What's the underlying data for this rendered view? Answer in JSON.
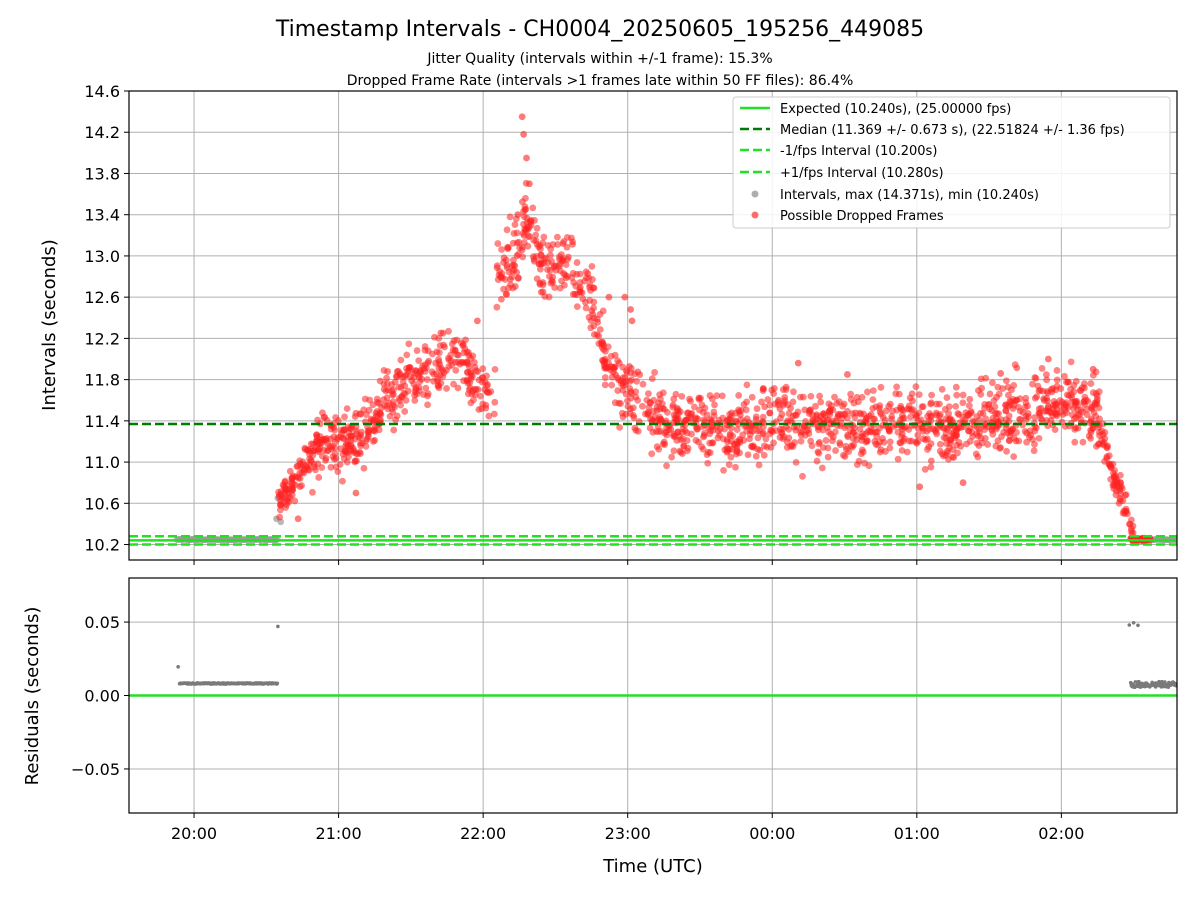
{
  "chart_data": {
    "type": "scatter",
    "title": "Timestamp Intervals - CH0004_20250605_195256_449085",
    "subtitles": [
      "Jitter Quality (intervals within +/-1 frame): 15.3%",
      "Dropped Frame Rate (intervals >1 frames late within 50 FF files): 86.4%"
    ],
    "xlabel": "Time (UTC)",
    "x_ticks": [
      "20:00",
      "21:00",
      "22:00",
      "23:00",
      "00:00",
      "01:00",
      "02:00"
    ],
    "x_tick_hours": [
      20,
      21,
      22,
      23,
      24,
      25,
      26
    ],
    "xlim_hours": [
      19.55,
      26.8
    ],
    "grid": true,
    "top_panel": {
      "ylabel": "Intervals (seconds)",
      "ylim": [
        10.05,
        14.6
      ],
      "y_ticks": [
        "10.2",
        "10.6",
        "11.0",
        "11.4",
        "11.8",
        "12.2",
        "12.6",
        "13.0",
        "13.4",
        "13.8",
        "14.2",
        "14.6"
      ],
      "y_tick_values": [
        10.2,
        10.6,
        11.0,
        11.4,
        11.8,
        12.2,
        12.6,
        13.0,
        13.4,
        13.8,
        14.2,
        14.6
      ],
      "legend_position": "top-right",
      "legend": [
        {
          "label": "Expected (10.240s), (25.00000 fps)",
          "style": "solid",
          "color": "#22e022"
        },
        {
          "label": "Median (11.369 +/- 0.673 s), (22.51824 +/- 1.36 fps)",
          "style": "dashed",
          "color": "#007a00"
        },
        {
          "label": "-1/fps Interval (10.200s)",
          "style": "dashed",
          "color": "#22e022"
        },
        {
          "label": "+1/fps Interval (10.280s)",
          "style": "dashed",
          "color": "#22e022"
        },
        {
          "label": "Intervals, max (14.371s), min (10.240s)",
          "style": "marker",
          "color": "#9a9a9a"
        },
        {
          "label": "Possible Dropped Frames",
          "style": "marker",
          "color": "#ff3030"
        }
      ],
      "expected": 10.24,
      "median": 11.369,
      "lower_fps_interval": 10.2,
      "upper_fps_interval": 10.28,
      "normal_segments": [
        {
          "x_start": 19.88,
          "x_end": 20.58,
          "y": 10.248
        },
        {
          "x_start": 26.48,
          "x_end": 26.8,
          "y": 10.248
        }
      ],
      "dropped_trend": [
        [
          20.58,
          10.6
        ],
        [
          20.75,
          10.95
        ],
        [
          20.9,
          11.2
        ],
        [
          21.05,
          11.15
        ],
        [
          21.2,
          11.3
        ],
        [
          21.4,
          11.7
        ],
        [
          21.6,
          11.85
        ],
        [
          21.8,
          12.05
        ],
        [
          21.95,
          11.8
        ],
        [
          22.08,
          11.6
        ],
        [
          22.1,
          12.8
        ],
        [
          22.25,
          13.0
        ],
        [
          22.3,
          13.4
        ],
        [
          22.4,
          12.9
        ],
        [
          22.6,
          12.85
        ],
        [
          22.75,
          12.6
        ],
        [
          22.85,
          12.0
        ],
        [
          23.0,
          11.65
        ],
        [
          23.25,
          11.4
        ],
        [
          23.6,
          11.3
        ],
        [
          24.0,
          11.38
        ],
        [
          24.5,
          11.38
        ],
        [
          25.0,
          11.35
        ],
        [
          25.5,
          11.4
        ],
        [
          25.85,
          11.55
        ],
        [
          26.0,
          11.6
        ],
        [
          26.25,
          11.45
        ],
        [
          26.33,
          11.0
        ],
        [
          26.43,
          10.6
        ],
        [
          26.5,
          10.3
        ]
      ],
      "peak_points": [
        [
          22.27,
          14.35
        ],
        [
          22.28,
          14.18
        ],
        [
          22.3,
          13.95
        ],
        [
          22.32,
          13.7
        ],
        [
          22.24,
          13.4
        ],
        [
          22.87,
          12.6
        ],
        [
          22.98,
          12.6
        ],
        [
          23.02,
          12.48
        ],
        [
          23.03,
          12.37
        ],
        [
          21.96,
          12.37
        ],
        [
          24.18,
          11.96
        ],
        [
          24.52,
          11.85
        ],
        [
          25.58,
          11.86
        ],
        [
          25.91,
          12.0
        ],
        [
          26.22,
          11.9
        ],
        [
          25.02,
          10.76
        ],
        [
          25.32,
          10.8
        ],
        [
          21.12,
          10.7
        ],
        [
          20.72,
          10.45
        ]
      ]
    },
    "bottom_panel": {
      "ylabel": "Residuals (seconds)",
      "ylim": [
        -0.08,
        0.08
      ],
      "y_ticks": [
        "0.05",
        "0.00",
        "−0.05"
      ],
      "y_tick_values": [
        0.05,
        0.0,
        -0.05
      ],
      "baseline": 0.0,
      "segments": [
        {
          "x_start": 19.9,
          "x_end": 20.58,
          "y": 0.0082
        },
        {
          "x_start": 26.48,
          "x_end": 26.8,
          "y": 0.0075
        }
      ],
      "outliers": [
        [
          19.89,
          0.0195
        ],
        [
          20.58,
          0.047
        ],
        [
          26.47,
          0.048
        ],
        [
          26.5,
          0.0495
        ],
        [
          26.53,
          0.0478
        ]
      ]
    }
  }
}
